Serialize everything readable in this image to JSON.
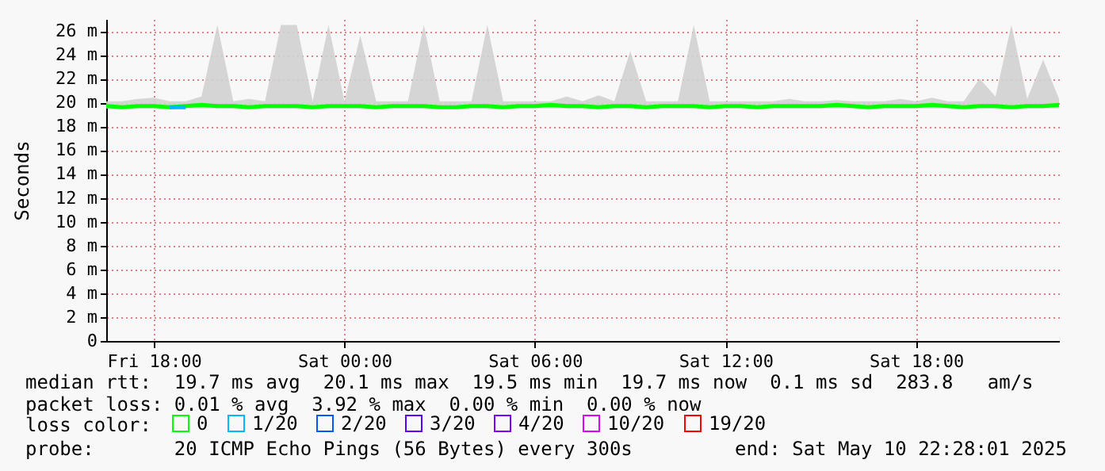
{
  "chart_data": {
    "type": "line",
    "ylabel": "Seconds",
    "x": [
      "2025-05-09T16:30",
      "2025-05-09T17:00",
      "2025-05-09T17:30",
      "2025-05-09T18:00",
      "2025-05-09T18:30",
      "2025-05-09T19:00",
      "2025-05-09T19:30",
      "2025-05-09T20:00",
      "2025-05-09T20:30",
      "2025-05-09T21:00",
      "2025-05-09T21:30",
      "2025-05-09T22:00",
      "2025-05-09T22:30",
      "2025-05-09T23:00",
      "2025-05-09T23:30",
      "2025-05-10T00:00",
      "2025-05-10T00:30",
      "2025-05-10T01:00",
      "2025-05-10T01:30",
      "2025-05-10T02:00",
      "2025-05-10T02:30",
      "2025-05-10T03:00",
      "2025-05-10T03:30",
      "2025-05-10T04:00",
      "2025-05-10T04:30",
      "2025-05-10T05:00",
      "2025-05-10T05:30",
      "2025-05-10T06:00",
      "2025-05-10T06:30",
      "2025-05-10T07:00",
      "2025-05-10T07:30",
      "2025-05-10T08:00",
      "2025-05-10T08:30",
      "2025-05-10T09:00",
      "2025-05-10T09:30",
      "2025-05-10T10:00",
      "2025-05-10T10:30",
      "2025-05-10T11:00",
      "2025-05-10T11:30",
      "2025-05-10T12:00",
      "2025-05-10T12:30",
      "2025-05-10T13:00",
      "2025-05-10T13:30",
      "2025-05-10T14:00",
      "2025-05-10T14:30",
      "2025-05-10T15:00",
      "2025-05-10T15:30",
      "2025-05-10T16:00",
      "2025-05-10T16:30",
      "2025-05-10T17:00",
      "2025-05-10T17:30",
      "2025-05-10T18:00",
      "2025-05-10T18:30",
      "2025-05-10T19:00",
      "2025-05-10T19:30",
      "2025-05-10T20:00",
      "2025-05-10T20:30",
      "2025-05-10T21:00",
      "2025-05-10T21:30",
      "2025-05-10T22:00",
      "2025-05-10T22:30"
    ],
    "series": [
      {
        "name": "0",
        "color": "#00ff00",
        "values": [
          19.7,
          19.6,
          19.7,
          19.7,
          19.6,
          19.7,
          19.8,
          19.7,
          19.7,
          19.6,
          19.7,
          19.7,
          19.7,
          19.6,
          19.7,
          19.7,
          19.7,
          19.6,
          19.7,
          19.7,
          19.7,
          19.6,
          19.6,
          19.7,
          19.7,
          19.6,
          19.7,
          19.7,
          19.8,
          19.7,
          19.7,
          19.6,
          19.7,
          19.7,
          19.6,
          19.7,
          19.7,
          19.7,
          19.6,
          19.7,
          19.7,
          19.6,
          19.7,
          19.7,
          19.7,
          19.7,
          19.8,
          19.7,
          19.6,
          19.7,
          19.7,
          19.7,
          19.8,
          19.7,
          19.6,
          19.7,
          19.7,
          19.6,
          19.7,
          19.7,
          19.8
        ],
        "lower": [
          19.5,
          19.5,
          19.5,
          19.5,
          19.5,
          19.5,
          19.5,
          19.5,
          19.5,
          19.5,
          19.5,
          19.5,
          19.5,
          19.5,
          19.5,
          19.5,
          19.5,
          19.5,
          19.5,
          19.5,
          19.5,
          19.5,
          19.5,
          19.5,
          19.5,
          19.5,
          19.5,
          19.5,
          19.5,
          19.5,
          19.5,
          19.5,
          19.5,
          19.5,
          19.5,
          19.5,
          19.5,
          19.5,
          19.5,
          19.5,
          19.5,
          19.5,
          19.5,
          19.5,
          19.5,
          19.5,
          19.5,
          19.5,
          19.5,
          19.5,
          19.5,
          19.5,
          19.5,
          19.5,
          19.5,
          19.5,
          19.5,
          19.5,
          19.5,
          19.5,
          19.5
        ],
        "upper": [
          20.1,
          20.1,
          20.3,
          20.4,
          20.1,
          20.1,
          20.5,
          26.5,
          20.1,
          20.3,
          20.1,
          26.5,
          26.5,
          20.1,
          26.5,
          20.1,
          25.6,
          20.1,
          20.1,
          20.1,
          26.5,
          20.1,
          20.1,
          20.1,
          26.5,
          20.1,
          20.1,
          20.1,
          20.1,
          20.5,
          20.1,
          20.6,
          20.1,
          24.3,
          20.1,
          20.1,
          20.1,
          26.5,
          20.1,
          20.1,
          20.1,
          20.1,
          20.1,
          20.3,
          20.1,
          20.1,
          20.2,
          20.1,
          20.1,
          20.1,
          20.3,
          20.1,
          20.4,
          20.1,
          20.1,
          22.0,
          20.5,
          26.5,
          20.3,
          23.6,
          20.3
        ]
      },
      {
        "name": "1/20",
        "color": "#00b8ff",
        "values": [
          null,
          null,
          null,
          null,
          19.6,
          19.6,
          null,
          null,
          null,
          null,
          null,
          null,
          null,
          null,
          null,
          null,
          null,
          null,
          null,
          null,
          null,
          null,
          null,
          null,
          null,
          null,
          null,
          null,
          null,
          null,
          null,
          null,
          null,
          null,
          null,
          null,
          null,
          null,
          null,
          null,
          null,
          null,
          null,
          null,
          null,
          null,
          null,
          null,
          null,
          null,
          null,
          null,
          null,
          null,
          null,
          null,
          null,
          null,
          null,
          null,
          null
        ]
      },
      {
        "name": "2/20",
        "color": "#0059ff",
        "values": [
          null,
          null,
          null,
          null,
          null,
          null,
          null,
          null,
          null,
          null,
          null,
          null,
          null,
          null,
          null,
          null,
          null,
          null,
          null,
          null,
          null,
          null,
          null,
          null,
          null,
          null,
          null,
          null,
          null,
          null,
          null,
          null,
          null,
          null,
          null,
          null,
          null,
          null,
          null,
          null,
          null,
          null,
          null,
          null,
          null,
          null,
          null,
          null,
          null,
          null,
          null,
          null,
          null,
          null,
          null,
          null,
          null,
          null,
          null,
          null,
          null
        ]
      },
      {
        "name": "3/20",
        "color": "#5e00ff",
        "values": [
          null,
          null,
          null,
          null,
          null,
          null,
          null,
          null,
          null,
          null,
          null,
          null,
          null,
          null,
          null,
          null,
          null,
          null,
          null,
          null,
          null,
          null,
          null,
          null,
          null,
          null,
          null,
          null,
          null,
          null,
          null,
          null,
          null,
          null,
          null,
          null,
          null,
          null,
          null,
          null,
          null,
          null,
          null,
          null,
          null,
          null,
          null,
          null,
          null,
          null,
          null,
          null,
          null,
          null,
          null,
          null,
          null,
          null,
          null,
          null,
          null
        ]
      },
      {
        "name": "4/20",
        "color": "#7e00ff",
        "values": [
          null,
          null,
          null,
          null,
          null,
          null,
          null,
          null,
          null,
          null,
          null,
          null,
          null,
          null,
          null,
          null,
          null,
          null,
          null,
          null,
          null,
          null,
          null,
          null,
          null,
          null,
          null,
          null,
          null,
          null,
          null,
          null,
          null,
          null,
          null,
          null,
          null,
          null,
          null,
          null,
          null,
          null,
          null,
          null,
          null,
          null,
          null,
          null,
          null,
          null,
          null,
          null,
          null,
          null,
          null,
          null,
          null,
          null,
          null,
          null,
          null
        ]
      },
      {
        "name": "10/20",
        "color": "#dd00ff",
        "values": [
          null,
          null,
          null,
          null,
          null,
          null,
          null,
          null,
          null,
          null,
          null,
          null,
          null,
          null,
          null,
          null,
          null,
          null,
          null,
          null,
          null,
          null,
          null,
          null,
          null,
          null,
          null,
          null,
          null,
          null,
          null,
          null,
          null,
          null,
          null,
          null,
          null,
          null,
          null,
          null,
          null,
          null,
          null,
          null,
          null,
          null,
          null,
          null,
          null,
          null,
          null,
          null,
          null,
          null,
          null,
          null,
          null,
          null,
          null,
          null,
          null
        ]
      },
      {
        "name": "19/20",
        "color": "#ff0000",
        "values": [
          null,
          null,
          null,
          null,
          null,
          null,
          null,
          null,
          null,
          null,
          null,
          null,
          null,
          null,
          null,
          null,
          null,
          null,
          null,
          null,
          null,
          null,
          null,
          null,
          null,
          null,
          null,
          null,
          null,
          null,
          null,
          null,
          null,
          null,
          null,
          null,
          null,
          null,
          null,
          null,
          null,
          null,
          null,
          null,
          null,
          null,
          null,
          null,
          null,
          null,
          null,
          null,
          null,
          null,
          null,
          null,
          null,
          null,
          null,
          null,
          null
        ]
      }
    ],
    "legend_title": "loss color:",
    "legend": "bottom",
    "xlim": [
      "2025-05-09T16:30",
      "2025-05-10T22:30"
    ],
    "xticks": [
      {
        "value": "2025-05-09T18:00",
        "label": "Fri 18:00"
      },
      {
        "value": "2025-05-10T00:00",
        "label": "Sat 00:00"
      },
      {
        "value": "2025-05-10T06:00",
        "label": "Sat 06:00"
      },
      {
        "value": "2025-05-10T12:00",
        "label": "Sat 12:00"
      },
      {
        "value": "2025-05-10T18:00",
        "label": "Sat 18:00"
      }
    ],
    "ylim": [
      0,
      27
    ],
    "yticks": [
      0,
      {
        "value": 2,
        "label": "2 m"
      },
      {
        "value": 4,
        "label": "4 m"
      },
      {
        "value": 6,
        "label": "6 m"
      },
      {
        "value": 8,
        "label": "8 m"
      },
      {
        "value": 10,
        "label": "10 m"
      },
      {
        "value": 12,
        "label": "12 m"
      },
      {
        "value": 14,
        "label": "14 m"
      },
      {
        "value": 16,
        "label": "16 m"
      },
      {
        "value": 18,
        "label": "18 m"
      },
      {
        "value": 20,
        "label": "20 m"
      },
      {
        "value": 22,
        "label": "22 m"
      },
      {
        "value": 24,
        "label": "24 m"
      },
      {
        "value": 26,
        "label": "26 m"
      }
    ],
    "grid": true,
    "line_style": "solid",
    "annotations": [
      "median rtt:  19.7 ms avg  20.1 ms max  19.5 ms min  19.7 ms now  0.1 ms sd  283.8   am/s",
      "packet loss: 0.01 % avg  3.92 % max  0.00 % min  0.00 % now",
      "probe:       20 ICMP Echo Pings (56 Bytes) every 300s",
      "end: Sat May 10 22:28:01 2025"
    ]
  }
}
